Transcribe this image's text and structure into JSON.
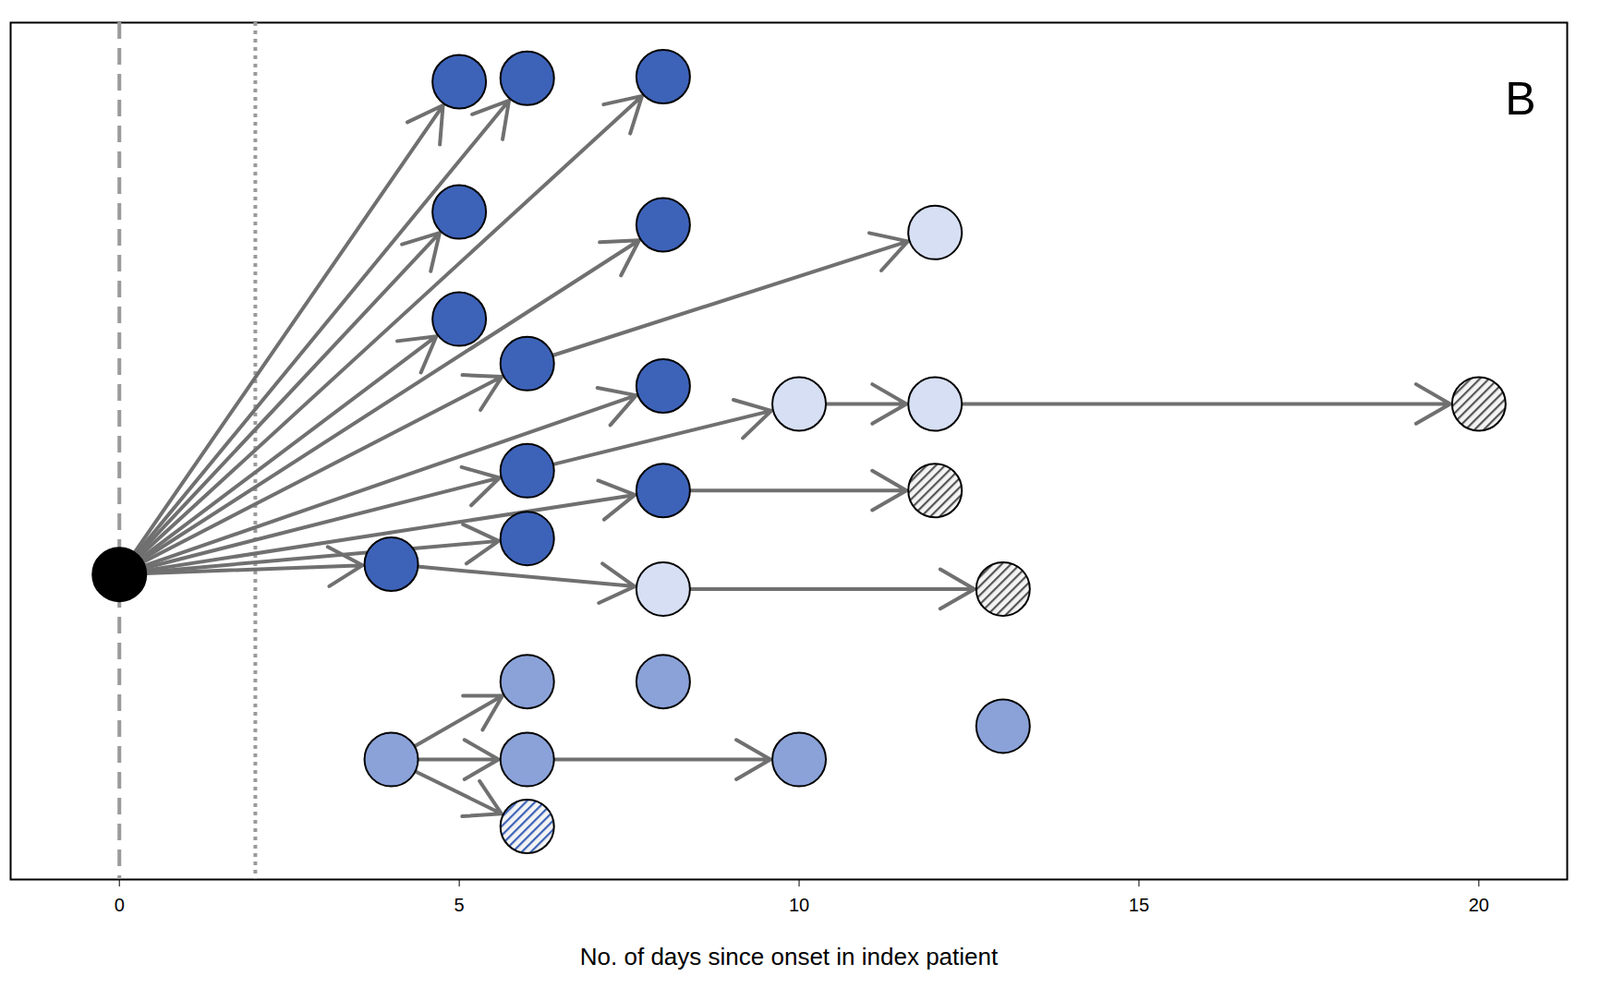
{
  "chart_data": {
    "type": "network",
    "panel_label": "B",
    "x_label": "No. of days since onset in index patient",
    "xlim": [
      -1.6,
      21.3
    ],
    "xticks": [
      0,
      5,
      10,
      15,
      20
    ],
    "ylim": [
      0,
      100
    ],
    "tick_labels": "x",
    "vlines": [
      {
        "x": 0,
        "line_style": "dashed"
      },
      {
        "x": 2,
        "line_style": "dotted"
      }
    ],
    "nodes": [
      {
        "x": 0,
        "y": 35.6,
        "color": "#000000",
        "marker": "circle"
      },
      {
        "x": 5,
        "y": 93.1,
        "color": "#3d63b9",
        "marker": "circle"
      },
      {
        "x": 6,
        "y": 93.5,
        "color": "#3d63b9",
        "marker": "circle"
      },
      {
        "x": 8,
        "y": 93.7,
        "color": "#3d63b9",
        "marker": "circle"
      },
      {
        "x": 5,
        "y": 77.9,
        "color": "#3d63b9",
        "marker": "circle"
      },
      {
        "x": 8,
        "y": 76.4,
        "color": "#3d63b9",
        "marker": "circle"
      },
      {
        "x": 12,
        "y": 75.5,
        "color": "#d6dff3",
        "marker": "circle"
      },
      {
        "x": 5,
        "y": 65.4,
        "color": "#3d63b9",
        "marker": "circle"
      },
      {
        "x": 6,
        "y": 60.2,
        "color": "#3d63b9",
        "marker": "circle"
      },
      {
        "x": 8,
        "y": 57.6,
        "color": "#3d63b9",
        "marker": "circle"
      },
      {
        "x": 10,
        "y": 55.5,
        "color": "#d6dff3",
        "marker": "circle"
      },
      {
        "x": 12,
        "y": 55.5,
        "color": "#d6dff3",
        "marker": "circle"
      },
      {
        "x": 20,
        "y": 55.5,
        "color": "#555555",
        "marker": "hatched"
      },
      {
        "x": 6,
        "y": 47.7,
        "color": "#3d63b9",
        "marker": "circle"
      },
      {
        "x": 8,
        "y": 45.4,
        "color": "#3d63b9",
        "marker": "circle"
      },
      {
        "x": 12,
        "y": 45.4,
        "color": "#555555",
        "marker": "hatched"
      },
      {
        "x": 6,
        "y": 39.8,
        "color": "#3d63b9",
        "marker": "circle"
      },
      {
        "x": 4,
        "y": 36.8,
        "color": "#3d63b9",
        "marker": "circle"
      },
      {
        "x": 8,
        "y": 33.9,
        "color": "#d6dff3",
        "marker": "circle"
      },
      {
        "x": 13,
        "y": 33.9,
        "color": "#555555",
        "marker": "hatched"
      },
      {
        "x": 6,
        "y": 23.1,
        "color": "#8ba2d9",
        "marker": "circle"
      },
      {
        "x": 8,
        "y": 23.1,
        "color": "#8ba2d9",
        "marker": "circle"
      },
      {
        "x": 13,
        "y": 17.9,
        "color": "#8ba2d9",
        "marker": "circle"
      },
      {
        "x": 4,
        "y": 14.0,
        "color": "#8ba2d9",
        "marker": "circle"
      },
      {
        "x": 6,
        "y": 14.0,
        "color": "#8ba2d9",
        "marker": "circle"
      },
      {
        "x": 10,
        "y": 14.0,
        "color": "#8ba2d9",
        "marker": "circle"
      },
      {
        "x": 6,
        "y": 6.2,
        "color": "#3d63b9",
        "marker": "hatched"
      }
    ],
    "edges": [
      [
        0,
        1
      ],
      [
        0,
        2
      ],
      [
        0,
        3
      ],
      [
        0,
        4
      ],
      [
        0,
        5
      ],
      [
        0,
        7
      ],
      [
        0,
        8
      ],
      [
        0,
        9
      ],
      [
        0,
        13
      ],
      [
        0,
        14
      ],
      [
        0,
        16
      ],
      [
        0,
        17
      ],
      [
        8,
        6
      ],
      [
        13,
        10
      ],
      [
        10,
        11
      ],
      [
        11,
        12
      ],
      [
        14,
        15
      ],
      [
        17,
        18
      ],
      [
        18,
        19
      ],
      [
        23,
        20
      ],
      [
        23,
        24
      ],
      [
        23,
        26
      ],
      [
        24,
        25
      ]
    ]
  }
}
